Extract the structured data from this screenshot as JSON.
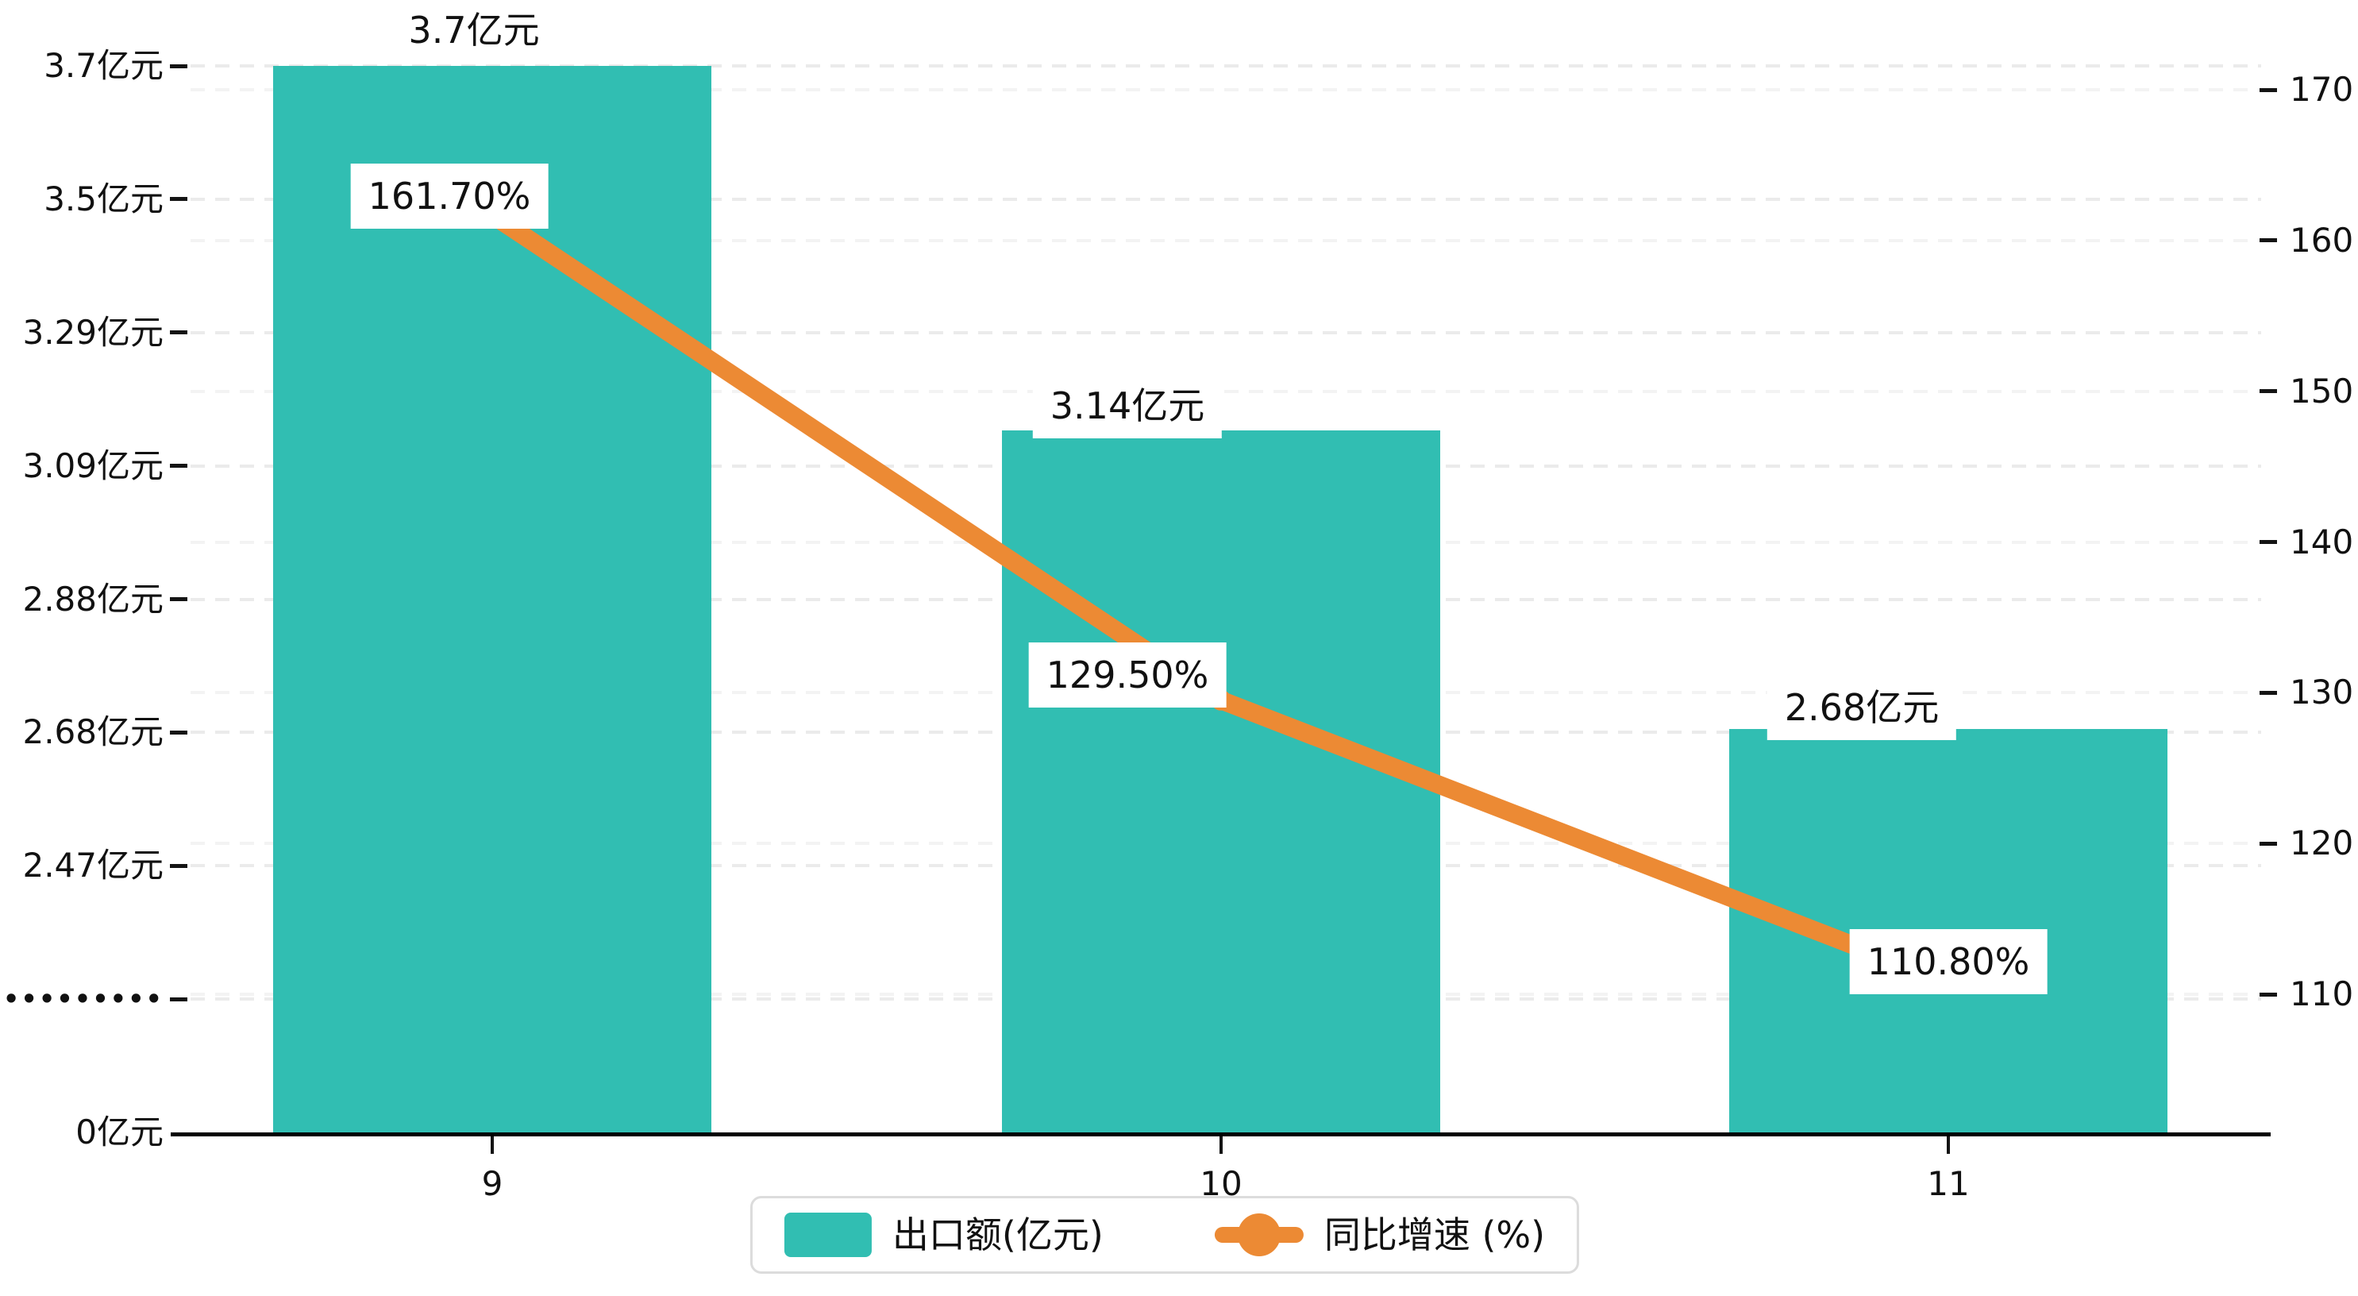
{
  "chart_data": {
    "type": "combo",
    "categories": [
      "9",
      "10",
      "11"
    ],
    "series": [
      {
        "name": "出口额(亿元)",
        "type": "bar",
        "values": [
          3.7,
          3.14,
          2.68
        ],
        "data_labels": [
          "3.7亿元",
          "3.14亿元",
          "2.68亿元"
        ],
        "color": "#31beb2"
      },
      {
        "name": "同比增速 (%)",
        "type": "line",
        "values": [
          161.7,
          129.5,
          110.8
        ],
        "data_labels": [
          "161.70%",
          "129.50%",
          "110.80%"
        ],
        "color": "#ec8a34"
      }
    ],
    "left_axis": {
      "unit": "亿元",
      "tick_labels": [
        "3.7亿元",
        "3.5亿元",
        "3.29亿元",
        "3.09亿元",
        "2.88亿元",
        "2.68亿元",
        "2.47亿元",
        "•••••••••",
        "0亿元"
      ],
      "broken_axis": true
    },
    "right_axis": {
      "tick_labels": [
        "170",
        "160",
        "150",
        "140",
        "130",
        "120",
        "110"
      ],
      "min": 110,
      "max": 170
    },
    "x_axis": {
      "tick_labels": [
        "9",
        "10",
        "11"
      ]
    },
    "legend": {
      "position": "bottom",
      "items": [
        {
          "label": "出口额(亿元)",
          "marker": "bar-swatch",
          "color": "#31beb2"
        },
        {
          "label": "同比增速 (%)",
          "marker": "line-dot",
          "color": "#ec8a34"
        }
      ]
    },
    "grid": true
  },
  "colors": {
    "bar": "#31beb2",
    "line": "#ec8a34",
    "axis": "#000000",
    "grid_major": "#ebebeb",
    "grid_minor": "#f3f3f3",
    "text": "#111111",
    "label_background": "#ffffff",
    "legend_border": "#dcdcdc"
  }
}
